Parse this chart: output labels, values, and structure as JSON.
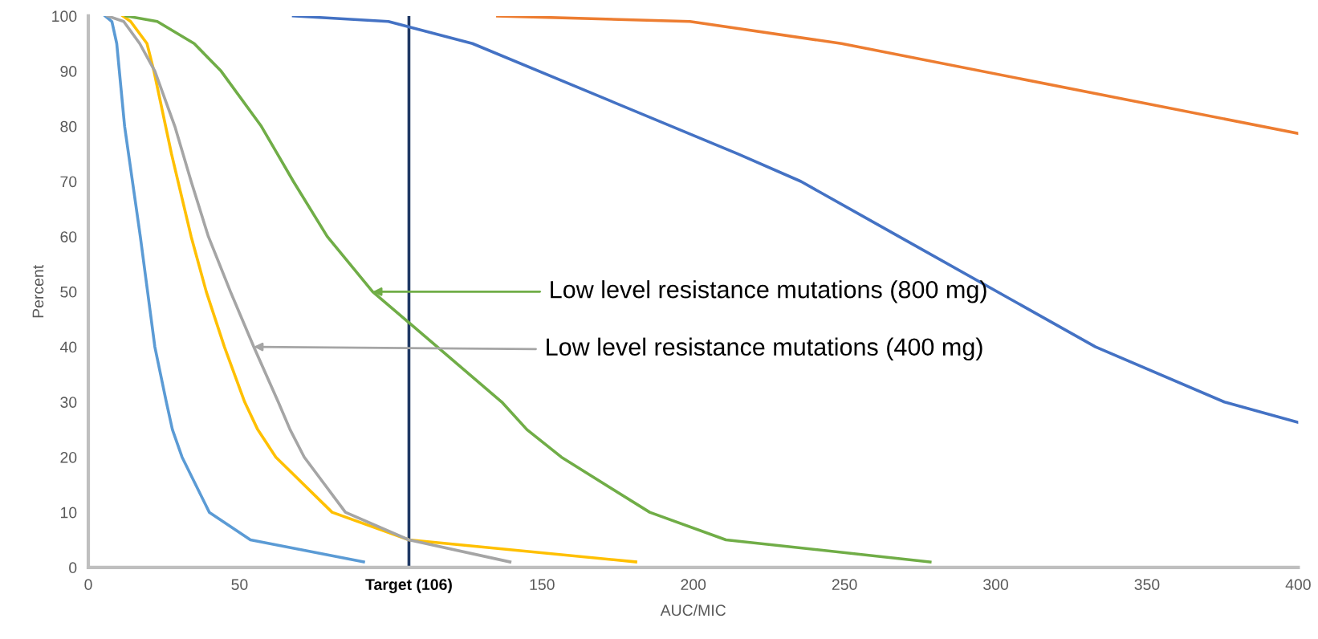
{
  "chart_data": {
    "type": "line",
    "xlabel": "AUC/MIC",
    "ylabel": "Percent",
    "xlim": [
      0,
      400
    ],
    "ylim": [
      0,
      100
    ],
    "xticks": [
      0,
      50,
      {
        "value": 106,
        "label": "Target (106)"
      },
      150,
      200,
      250,
      300,
      350,
      400
    ],
    "yticks": [
      0,
      10,
      20,
      30,
      40,
      50,
      60,
      70,
      80,
      90,
      100
    ],
    "grid": false,
    "legend": false,
    "marker": "none",
    "line_style": "solid",
    "ref_lines": [
      {
        "axis": "x",
        "value": 106,
        "color": "#1f3864"
      }
    ],
    "series": [
      {
        "color": "#5b9bd5",
        "x": [
          5.6,
          7.8,
          9.4,
          12,
          17.2,
          19.6,
          22,
          25.8,
          27.8,
          31,
          40,
          53.6,
          91
        ],
        "values": [
          100,
          99,
          95,
          80,
          60,
          50,
          40,
          30,
          25,
          20,
          10,
          5,
          1
        ]
      },
      {
        "color": "#ffc000",
        "x": [
          11.4,
          14,
          19.4,
          21.7,
          27.5,
          34,
          39,
          45,
          51.7,
          56,
          62,
          80.6,
          106,
          181
        ],
        "values": [
          100,
          99,
          95,
          90,
          75,
          60,
          50,
          40,
          30,
          25,
          20,
          10,
          5,
          1
        ]
      },
      {
        "color": "#a5a5a5",
        "x": [
          6.4,
          11.7,
          17,
          22,
          28.6,
          34,
          39.7,
          47,
          54.7,
          62.8,
          66.7,
          71.4,
          85,
          106,
          139.4
        ],
        "values": [
          100,
          99,
          95,
          90,
          80,
          70,
          60,
          50,
          40,
          30,
          25,
          20,
          10,
          5,
          1
        ]
      },
      {
        "color": "#70ad47",
        "x": [
          12.5,
          22.8,
          35,
          43.9,
          57.2,
          62.5,
          67.8,
          79,
          94,
          136.7,
          145,
          156.4,
          185.6,
          210.8,
          278.3
        ],
        "values": [
          100,
          99,
          95,
          90,
          80,
          75,
          70,
          60,
          50,
          30,
          25,
          20,
          10,
          5,
          1
        ]
      },
      {
        "color": "#4472c4",
        "x": [
          67.8,
          99.2,
          127,
          214.7,
          235.6,
          268,
          333,
          375.6,
          400
        ],
        "values": [
          100,
          99,
          95,
          75,
          70,
          60,
          40,
          30,
          26.3
        ]
      },
      {
        "color": "#ed7d31",
        "x": [
          135.3,
          198.9,
          249,
          400
        ],
        "values": [
          100,
          99,
          95,
          78.7
        ]
      }
    ],
    "annotations": [
      {
        "text": "Low level resistance mutations (800 mg)",
        "x": 94,
        "y": 50
      },
      {
        "text": "Low level resistance mutations (400 mg)",
        "x": 54.7,
        "y": 40
      }
    ]
  }
}
